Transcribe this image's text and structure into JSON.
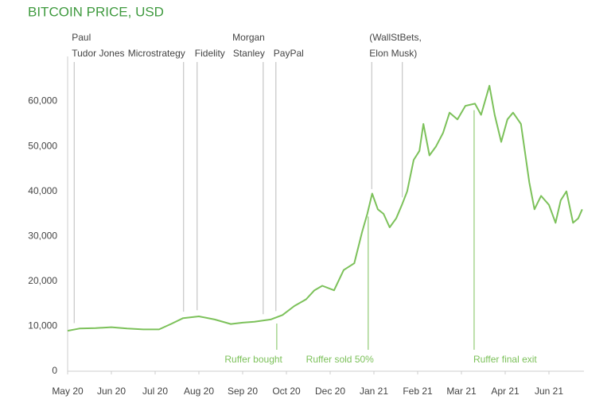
{
  "chart_data": {
    "type": "line",
    "title": "BITCOIN PRICE, USD",
    "color": "#7cc15a",
    "x": [
      0,
      0.27,
      0.64,
      1,
      1.36,
      1.73,
      2.09,
      2.36,
      2.64,
      3,
      3.36,
      3.73,
      4,
      4.27,
      4.64,
      4.91,
      5.18,
      5.45,
      5.64,
      5.82,
      6.09,
      6.31,
      6.55,
      6.73,
      6.85,
      6.96,
      7.09,
      7.22,
      7.36,
      7.51,
      7.64,
      7.76,
      7.91,
      8.04,
      8.13,
      8.27,
      8.42,
      8.58,
      8.73,
      8.91,
      9.09,
      9.31,
      9.45,
      9.64,
      9.76,
      9.91,
      10.05,
      10.18,
      10.36,
      10.55,
      10.67,
      10.82,
      11,
      11.15,
      11.27,
      11.4,
      11.55,
      11.67,
      11.76
    ],
    "values": [
      9000,
      9500,
      9600,
      9800,
      9500,
      9300,
      9300,
      10500,
      11800,
      12200,
      11500,
      10500,
      10800,
      11000,
      11500,
      12500,
      14500,
      16000,
      18000,
      19000,
      18000,
      22500,
      24000,
      31000,
      35000,
      39500,
      36000,
      35000,
      32000,
      34000,
      37000,
      40000,
      47000,
      49000,
      55000,
      48000,
      50000,
      53000,
      57500,
      56000,
      59000,
      59500,
      57000,
      63500,
      57000,
      51000,
      56000,
      57500,
      55000,
      42000,
      36000,
      39000,
      37000,
      33000,
      38000,
      40000,
      33000,
      34000,
      36000
    ],
    "xlim": [
      0,
      11.8
    ],
    "xticks": [
      {
        "value": 0,
        "label": "May 20"
      },
      {
        "value": 1,
        "label": "Jun 20"
      },
      {
        "value": 2,
        "label": "Jul 20"
      },
      {
        "value": 3,
        "label": "Aug 20"
      },
      {
        "value": 4,
        "label": "Sep 20"
      },
      {
        "value": 5,
        "label": "Oct 20"
      },
      {
        "value": 6,
        "label": "Dec 20"
      },
      {
        "value": 7,
        "label": "Jan 21"
      },
      {
        "value": 8,
        "label": "Feb 21"
      },
      {
        "value": 9,
        "label": "Mar 21"
      },
      {
        "value": 10,
        "label": "Apr 21"
      },
      {
        "value": 11,
        "label": "Jun 21"
      }
    ],
    "ylim": [
      0,
      70000
    ],
    "yticks": [
      0,
      {
        "value": 10000,
        "label": "10,000"
      },
      {
        "value": 20000,
        "label": "20,000"
      },
      {
        "value": 30000,
        "label": "30,000"
      },
      {
        "value": 40000,
        "label": "40,000"
      },
      {
        "value": 50000,
        "label": "50,000"
      },
      {
        "value": 60000,
        "label": "60,000"
      }
    ],
    "events": [
      {
        "lines": [
          "Paul",
          "Tudor Jones"
        ],
        "x": [
          0.15
        ]
      },
      {
        "lines": [
          "Microstrategy"
        ],
        "x": [
          2.65
        ]
      },
      {
        "lines": [
          "Fidelity"
        ],
        "x": [
          2.96
        ]
      },
      {
        "lines": [
          "Morgan",
          "Stanley"
        ],
        "x": [
          4.47
        ]
      },
      {
        "lines": [
          "PayPal"
        ],
        "x": [
          4.76
        ]
      },
      {
        "lines": [
          "(WallStBets,",
          "Elon Musk)"
        ],
        "x": [
          6.95,
          7.65
        ]
      }
    ],
    "ruffer_events": [
      {
        "text": "Ruffer bought",
        "x": 4.78
      },
      {
        "text": "Ruffer sold 50%",
        "x": 6.87
      },
      {
        "text": "Ruffer final exit",
        "x": 9.29
      }
    ]
  }
}
